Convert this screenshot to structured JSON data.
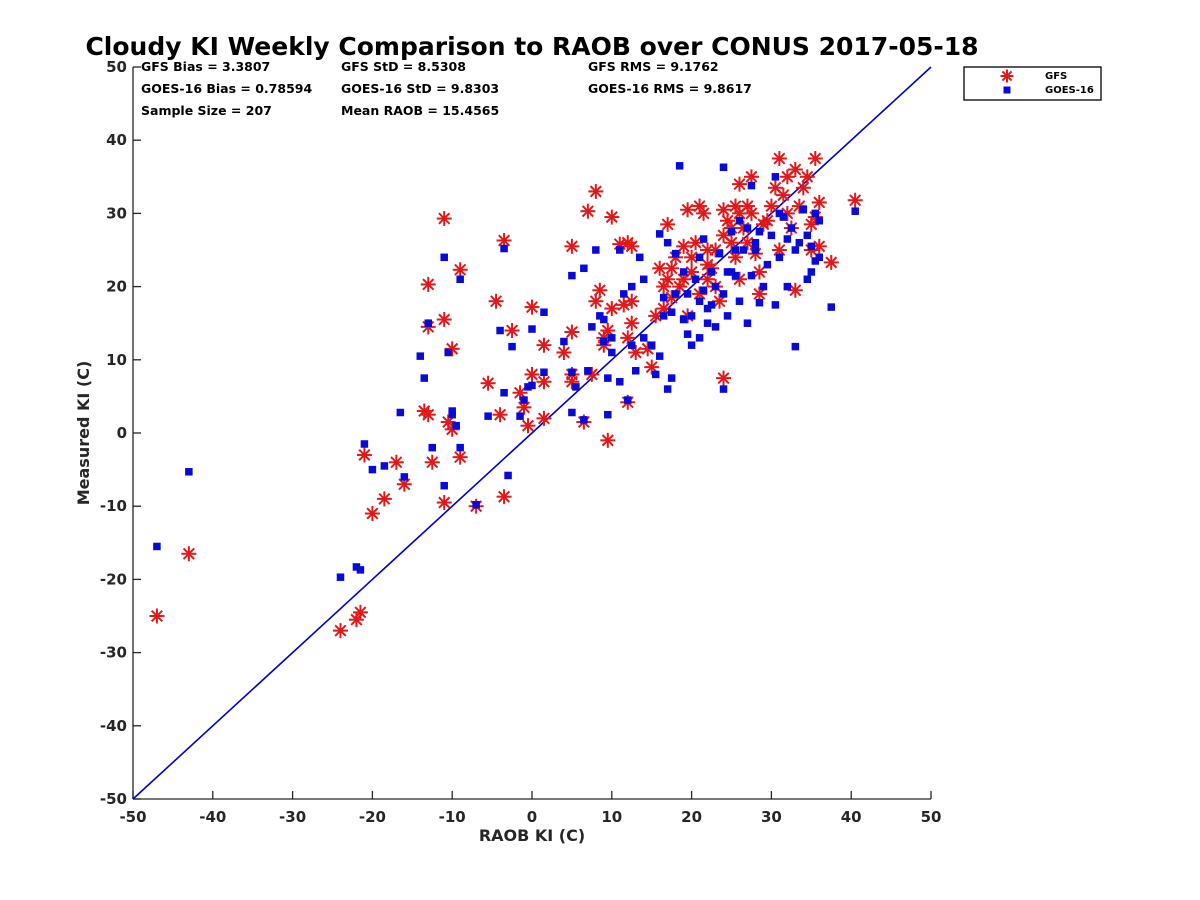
{
  "chart_data": {
    "type": "scatter",
    "title": "Cloudy KI Weekly Comparison to RAOB over CONUS 2017-05-18",
    "xlabel": "RAOB KI (C)",
    "ylabel": "Measured KI (C)",
    "xlim": [
      -50,
      50
    ],
    "ylim": [
      -50,
      50
    ],
    "xticks": [
      "-50",
      "-40",
      "-30",
      "-20",
      "-10",
      "0",
      "10",
      "20",
      "30",
      "40",
      "50"
    ],
    "yticks": [
      "50",
      "40",
      "30",
      "20",
      "10",
      "0",
      "-10",
      "-20",
      "-30",
      "-40",
      "-50"
    ],
    "reference_line": {
      "from": [
        -50,
        -50
      ],
      "to": [
        50,
        50
      ],
      "color": "#0000cc"
    },
    "stats": [
      [
        "GFS Bias = 3.3807",
        "GFS StD = 8.5308",
        "GFS RMS = 9.1762"
      ],
      [
        "GOES-16 Bias = 0.78594",
        "GOES-16 StD = 9.8303",
        "GOES-16 RMS = 9.8617"
      ],
      [
        "Sample Size = 207",
        "Mean RAOB = 15.4565",
        ""
      ]
    ],
    "legend_position": "top-right, outside plot",
    "series": [
      {
        "name": "GFS",
        "marker": "asterisk",
        "color": "#e0191b",
        "points": [
          [
            -47,
            -25
          ],
          [
            -43,
            -16.5
          ],
          [
            -24,
            -27
          ],
          [
            -22,
            -25.5
          ],
          [
            -21.5,
            -24.5
          ],
          [
            -20,
            -11
          ],
          [
            -18.5,
            -9
          ],
          [
            -21,
            -3
          ],
          [
            -17,
            -4
          ],
          [
            -16,
            -7
          ],
          [
            -13.5,
            3
          ],
          [
            -13,
            2.5
          ],
          [
            -12.5,
            -4
          ],
          [
            -13,
            20.3
          ],
          [
            -13,
            14.5
          ],
          [
            -11,
            29.3
          ],
          [
            -11,
            15.5
          ],
          [
            -10,
            11.5
          ],
          [
            -10.5,
            1.5
          ],
          [
            -10,
            0.5
          ],
          [
            -11,
            -9.5
          ],
          [
            -9,
            22.3
          ],
          [
            -9,
            -3.3
          ],
          [
            -7,
            -10
          ],
          [
            -5.5,
            6.8
          ],
          [
            -4.5,
            18
          ],
          [
            -4,
            2.5
          ],
          [
            -3.5,
            -8.7
          ],
          [
            -3.5,
            26.3
          ],
          [
            -2.5,
            14
          ],
          [
            -1.5,
            5.5
          ],
          [
            -1,
            3.5
          ],
          [
            -0.5,
            1
          ],
          [
            0,
            17.2
          ],
          [
            0,
            8
          ],
          [
            1.5,
            7
          ],
          [
            1.5,
            12
          ],
          [
            1.5,
            2
          ],
          [
            4,
            11
          ],
          [
            5,
            25.5
          ],
          [
            5,
            13.8
          ],
          [
            5,
            8
          ],
          [
            5,
            7
          ],
          [
            7,
            30.3
          ],
          [
            6.5,
            1.5
          ],
          [
            7.5,
            8
          ],
          [
            8,
            33
          ],
          [
            8,
            18
          ],
          [
            8.5,
            19.5
          ],
          [
            9,
            13
          ],
          [
            9,
            12
          ],
          [
            9.5,
            -1
          ],
          [
            9.5,
            14
          ],
          [
            10,
            29.5
          ],
          [
            10,
            17
          ],
          [
            11,
            25.8
          ],
          [
            11.5,
            17.5
          ],
          [
            12,
            26
          ],
          [
            12,
            13
          ],
          [
            12,
            4.2
          ],
          [
            12.5,
            25.5
          ],
          [
            12.5,
            18
          ],
          [
            12.5,
            15
          ],
          [
            13,
            11
          ],
          [
            14.5,
            11.5
          ],
          [
            15,
            9
          ],
          [
            15.5,
            16
          ],
          [
            16,
            22.5
          ],
          [
            16.5,
            20
          ],
          [
            16.5,
            17
          ],
          [
            17,
            28.5
          ],
          [
            17,
            21
          ],
          [
            17.5,
            18.5
          ],
          [
            17.5,
            22.5
          ],
          [
            18,
            24
          ],
          [
            18.5,
            20
          ],
          [
            19,
            25.5
          ],
          [
            19,
            21
          ],
          [
            19.5,
            30.5
          ],
          [
            19.5,
            16
          ],
          [
            20,
            24
          ],
          [
            20,
            22
          ],
          [
            20.5,
            26
          ],
          [
            21,
            19
          ],
          [
            21,
            31
          ],
          [
            21.5,
            30
          ],
          [
            22,
            23
          ],
          [
            22,
            25
          ],
          [
            22,
            21
          ],
          [
            22.5,
            22.5
          ],
          [
            23,
            25
          ],
          [
            23,
            20
          ],
          [
            23.5,
            18
          ],
          [
            24,
            30.5
          ],
          [
            24,
            7.5
          ],
          [
            24,
            27
          ],
          [
            24.5,
            29
          ],
          [
            25,
            26
          ],
          [
            25,
            28
          ],
          [
            25.5,
            31
          ],
          [
            25.5,
            24
          ],
          [
            26,
            30
          ],
          [
            26,
            34
          ],
          [
            26,
            21
          ],
          [
            26.5,
            28
          ],
          [
            27,
            31
          ],
          [
            27.5,
            35
          ],
          [
            27,
            26
          ],
          [
            27.5,
            30
          ],
          [
            28,
            24.5
          ],
          [
            28.5,
            22
          ],
          [
            28.5,
            19
          ],
          [
            29,
            28.5
          ],
          [
            29.5,
            29
          ],
          [
            30,
            31
          ],
          [
            30.5,
            33.5
          ],
          [
            31,
            37.5
          ],
          [
            31,
            25
          ],
          [
            31.5,
            32.5
          ],
          [
            32,
            35
          ],
          [
            32,
            30
          ],
          [
            32.5,
            28
          ],
          [
            33,
            36
          ],
          [
            33,
            19.5
          ],
          [
            33.5,
            31
          ],
          [
            34,
            33.5
          ],
          [
            34.5,
            35
          ],
          [
            35,
            28.5
          ],
          [
            35,
            25
          ],
          [
            35.5,
            29.5
          ],
          [
            35.5,
            37.5
          ],
          [
            36,
            25.5
          ],
          [
            36,
            31.5
          ],
          [
            37.5,
            23.3
          ],
          [
            40.5,
            31.8
          ]
        ]
      },
      {
        "name": "GOES-16",
        "marker": "square",
        "color": "#0a0ad8",
        "points": [
          [
            -47,
            -15.5
          ],
          [
            -43,
            -5.3
          ],
          [
            -24,
            -19.7
          ],
          [
            -22,
            -18.3
          ],
          [
            -21.5,
            -18.7
          ],
          [
            -21,
            -1.5
          ],
          [
            -20,
            -5
          ],
          [
            -18.5,
            -4.5
          ],
          [
            -16.5,
            2.8
          ],
          [
            -16,
            -6
          ],
          [
            -14,
            10.5
          ],
          [
            -13.5,
            7.5
          ],
          [
            -13,
            15
          ],
          [
            -12.5,
            -2
          ],
          [
            -11,
            24
          ],
          [
            -11,
            -7.2
          ],
          [
            -10.5,
            11
          ],
          [
            -10,
            2.5
          ],
          [
            -10,
            3
          ],
          [
            -9.5,
            1
          ],
          [
            -9,
            21
          ],
          [
            -9,
            -2
          ],
          [
            -7,
            -9.8
          ],
          [
            -5.5,
            2.3
          ],
          [
            -4,
            14
          ],
          [
            -3.5,
            25.2
          ],
          [
            -3.5,
            5.5
          ],
          [
            -3,
            -5.8
          ],
          [
            -2.5,
            11.8
          ],
          [
            -1.5,
            2.3
          ],
          [
            -1,
            4.5
          ],
          [
            -0.5,
            6.3
          ],
          [
            0,
            14.2
          ],
          [
            0,
            6.5
          ],
          [
            1.5,
            8.3
          ],
          [
            1.5,
            16.5
          ],
          [
            4,
            12.5
          ],
          [
            5,
            21.5
          ],
          [
            5,
            8.3
          ],
          [
            5,
            2.8
          ],
          [
            5.5,
            6.3
          ],
          [
            6.5,
            22.5
          ],
          [
            6.5,
            1.8
          ],
          [
            7,
            8.5
          ],
          [
            7.5,
            14.5
          ],
          [
            8,
            25
          ],
          [
            8.5,
            16
          ],
          [
            9,
            12.5
          ],
          [
            9,
            15.5
          ],
          [
            9.5,
            7.5
          ],
          [
            9.5,
            2.5
          ],
          [
            10,
            11
          ],
          [
            10,
            13
          ],
          [
            11,
            7
          ],
          [
            11,
            25
          ],
          [
            11.5,
            19
          ],
          [
            12,
            4.5
          ],
          [
            12.5,
            12
          ],
          [
            12.5,
            20
          ],
          [
            13,
            8.5
          ],
          [
            13.5,
            24
          ],
          [
            14,
            21
          ],
          [
            14,
            13
          ],
          [
            15,
            12
          ],
          [
            15.5,
            8
          ],
          [
            16,
            10.5
          ],
          [
            16,
            27.2
          ],
          [
            16.5,
            16
          ],
          [
            16.5,
            18.5
          ],
          [
            17,
            26
          ],
          [
            17,
            6
          ],
          [
            17.5,
            7.5
          ],
          [
            17.5,
            16.5
          ],
          [
            18,
            19
          ],
          [
            18,
            24.5
          ],
          [
            18.5,
            36.5
          ],
          [
            19,
            22
          ],
          [
            19,
            15.5
          ],
          [
            19.5,
            19
          ],
          [
            19.5,
            13.5
          ],
          [
            20,
            16
          ],
          [
            20,
            12
          ],
          [
            20.5,
            21
          ],
          [
            21,
            24
          ],
          [
            21,
            18
          ],
          [
            21,
            13
          ],
          [
            21.5,
            26.5
          ],
          [
            21.5,
            19.5
          ],
          [
            22,
            17
          ],
          [
            22,
            15
          ],
          [
            22.5,
            22
          ],
          [
            22.5,
            17.5
          ],
          [
            23,
            14.5
          ],
          [
            23,
            20
          ],
          [
            23.5,
            24.5
          ],
          [
            24,
            36.3
          ],
          [
            24,
            19
          ],
          [
            24,
            6
          ],
          [
            24.5,
            22
          ],
          [
            24.5,
            16
          ],
          [
            25,
            27.5
          ],
          [
            25,
            22
          ],
          [
            25.5,
            25
          ],
          [
            25.5,
            21.5
          ],
          [
            26,
            29
          ],
          [
            26,
            18
          ],
          [
            26.5,
            25
          ],
          [
            27,
            15
          ],
          [
            27,
            28
          ],
          [
            27.5,
            33.8
          ],
          [
            27.5,
            21.5
          ],
          [
            28,
            25
          ],
          [
            28,
            26
          ],
          [
            28.5,
            17.8
          ],
          [
            28.5,
            27.5
          ],
          [
            29,
            20
          ],
          [
            29.5,
            23
          ],
          [
            30,
            27
          ],
          [
            30.5,
            35
          ],
          [
            30.5,
            17.5
          ],
          [
            31,
            24
          ],
          [
            31,
            30
          ],
          [
            31.5,
            29.5
          ],
          [
            32,
            26.5
          ],
          [
            32,
            20
          ],
          [
            32.5,
            28
          ],
          [
            33,
            11.8
          ],
          [
            33,
            25
          ],
          [
            33.5,
            26
          ],
          [
            34,
            30.5
          ],
          [
            34.5,
            27
          ],
          [
            34.5,
            21
          ],
          [
            35,
            25.5
          ],
          [
            35,
            22
          ],
          [
            35.5,
            23.5
          ],
          [
            35.5,
            30
          ],
          [
            36,
            29
          ],
          [
            36,
            24
          ],
          [
            37.5,
            17.2
          ],
          [
            40.5,
            30.3
          ]
        ]
      }
    ]
  }
}
